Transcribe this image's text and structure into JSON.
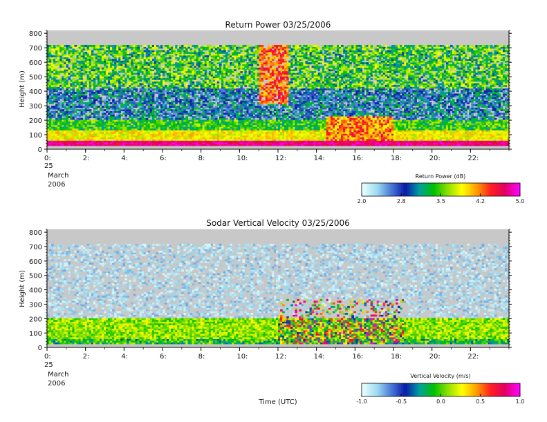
{
  "figure": {
    "xlabel": "Time (UTC)"
  },
  "chart_data": [
    {
      "type": "heatmap",
      "title": "Return Power 03/25/2006",
      "ylabel": "Height (m)",
      "xlabel": "",
      "ylim": [
        0,
        820
      ],
      "xlim": [
        0,
        24
      ],
      "y_ticks": [
        0,
        100,
        200,
        300,
        400,
        500,
        600,
        700,
        800
      ],
      "x_ticks": [
        0,
        2,
        4,
        6,
        8,
        10,
        12,
        14,
        16,
        18,
        20,
        22
      ],
      "x_tick_labels": [
        "0:",
        "2:",
        "4:",
        "6:",
        "8:",
        "10:",
        "12:",
        "14:",
        "16:",
        "18:",
        "20:",
        "22:"
      ],
      "date_label": [
        "25",
        "March",
        "2006"
      ],
      "data_top_height": 720,
      "colorbar": {
        "label": "Return Power (dB)",
        "min": 2.0,
        "max": 5.0,
        "ticks": [
          "2.0",
          "2.8",
          "3.5",
          "4.2",
          "5.0"
        ]
      },
      "colors": {
        "background": "#c8c8c8",
        "colormap": [
          "#e8ffff",
          "#9fdcf0",
          "#4a7ad8",
          "#0a1aa8",
          "#00a0a0",
          "#00c000",
          "#90e000",
          "#ffff00",
          "#ffa000",
          "#ff2020",
          "#e00060",
          "#ff00ff"
        ]
      }
    },
    {
      "type": "heatmap",
      "title": "Sodar Vertical Velocity 03/25/2006",
      "ylabel": "Height (m)",
      "xlabel": "Time (UTC)",
      "ylim": [
        0,
        820
      ],
      "xlim": [
        0,
        24
      ],
      "y_ticks": [
        0,
        100,
        200,
        300,
        400,
        500,
        600,
        700,
        800
      ],
      "x_ticks": [
        0,
        2,
        4,
        6,
        8,
        10,
        12,
        14,
        16,
        18,
        20,
        22
      ],
      "x_tick_labels": [
        "0:",
        "2:",
        "4:",
        "6:",
        "8:",
        "10:",
        "12:",
        "14:",
        "16:",
        "18:",
        "20:",
        "22:"
      ],
      "date_label": [
        "25",
        "March",
        "2006"
      ],
      "data_top_height": 720,
      "colorbar": {
        "label": "Vertical Velocity (m/s)",
        "min": -1.0,
        "max": 1.0,
        "ticks": [
          "-1.0",
          "-0.5",
          "0.0",
          "0.5",
          "1.0"
        ]
      },
      "colors": {
        "background": "#c8c8c8",
        "colormap": [
          "#e8ffff",
          "#9fdcf0",
          "#4a7ad8",
          "#0a1aa8",
          "#00a0a0",
          "#00c000",
          "#90e000",
          "#ffff00",
          "#ffa000",
          "#ff2020",
          "#e00060",
          "#ff00ff"
        ]
      }
    }
  ]
}
